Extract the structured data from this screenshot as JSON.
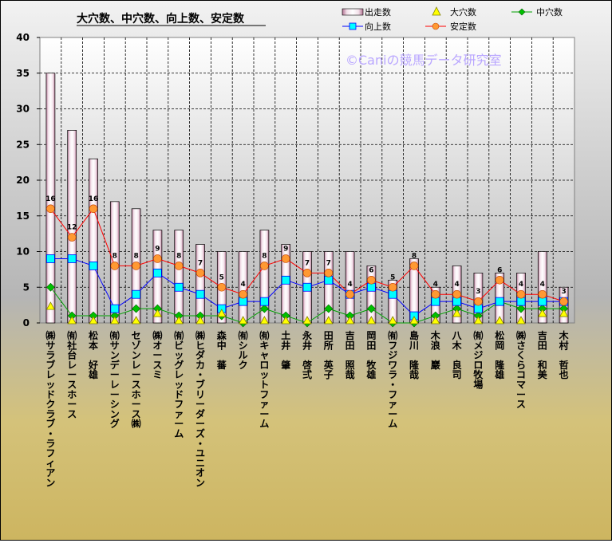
{
  "chart_data": {
    "type": "bar",
    "title": "大穴数、中穴数、向上数、安定数",
    "watermark": "©Caniの競馬データ研究室",
    "ylim": [
      0,
      40
    ],
    "yticks": [
      0,
      5,
      10,
      15,
      20,
      25,
      30,
      35,
      40
    ],
    "categories": [
      "㈱サラブレッドクラブ・ラフィアン",
      "㈲社台レースホース",
      "松本　好雄",
      "㈲サンデーレーシング",
      "セゾンレースホース㈱",
      "㈱オースミ",
      "㈲ビッグレッドファーム",
      "㈱ヒダカ・ブリーダーズ・ユニオン",
      "森中　蕃",
      "㈲シルク",
      "㈲キャロットファーム",
      "土井　肇",
      "永井　啓弍",
      "田所　英子",
      "吉田　照哉",
      "岡田　牧雄",
      "㈲フジワラ・ファーム",
      "島川　隆哉",
      "木浪　巖",
      "八木　良司",
      "㈲メジロ牧場",
      "松岡　隆雄",
      "㈱さくらコマース",
      "吉田　和美",
      "木村　哲也"
    ],
    "series": [
      {
        "name": "出走数",
        "kind": "bar",
        "color": "#ffffff",
        "values": [
          35,
          27,
          23,
          17,
          16,
          13,
          13,
          11,
          10,
          10,
          13,
          11,
          10,
          10,
          10,
          8,
          6,
          9,
          5,
          8,
          7,
          7,
          7,
          10,
          5
        ]
      },
      {
        "name": "大穴数",
        "kind": "marker",
        "color": "#ffff00",
        "values": [
          2,
          0,
          0,
          0,
          0,
          1,
          0,
          0,
          1,
          0,
          0,
          0,
          0,
          0,
          0,
          0,
          0,
          0,
          0,
          1,
          0,
          0,
          0,
          1,
          1
        ]
      },
      {
        "name": "中穴数",
        "kind": "line",
        "color": "#00a000",
        "values": [
          5,
          1,
          1,
          1,
          2,
          2,
          1,
          1,
          1,
          0,
          2,
          1,
          0,
          2,
          1,
          2,
          0,
          0,
          1,
          2,
          1,
          3,
          2,
          2,
          2
        ]
      },
      {
        "name": "向上数",
        "kind": "line",
        "color": "#0000ff",
        "values": [
          9,
          9,
          8,
          2,
          4,
          7,
          5,
          4,
          2,
          3,
          3,
          6,
          5,
          6,
          4,
          5,
          4,
          1,
          3,
          3,
          2,
          3,
          3,
          3,
          3
        ]
      },
      {
        "name": "安定数",
        "kind": "line",
        "color": "#ff0000",
        "values": [
          16,
          12,
          16,
          8,
          8,
          9,
          8,
          7,
          5,
          4,
          8,
          9,
          7,
          7,
          4,
          6,
          5,
          8,
          4,
          4,
          3,
          6,
          4,
          4,
          3
        ]
      }
    ],
    "grid": true,
    "legend": "top-right"
  }
}
